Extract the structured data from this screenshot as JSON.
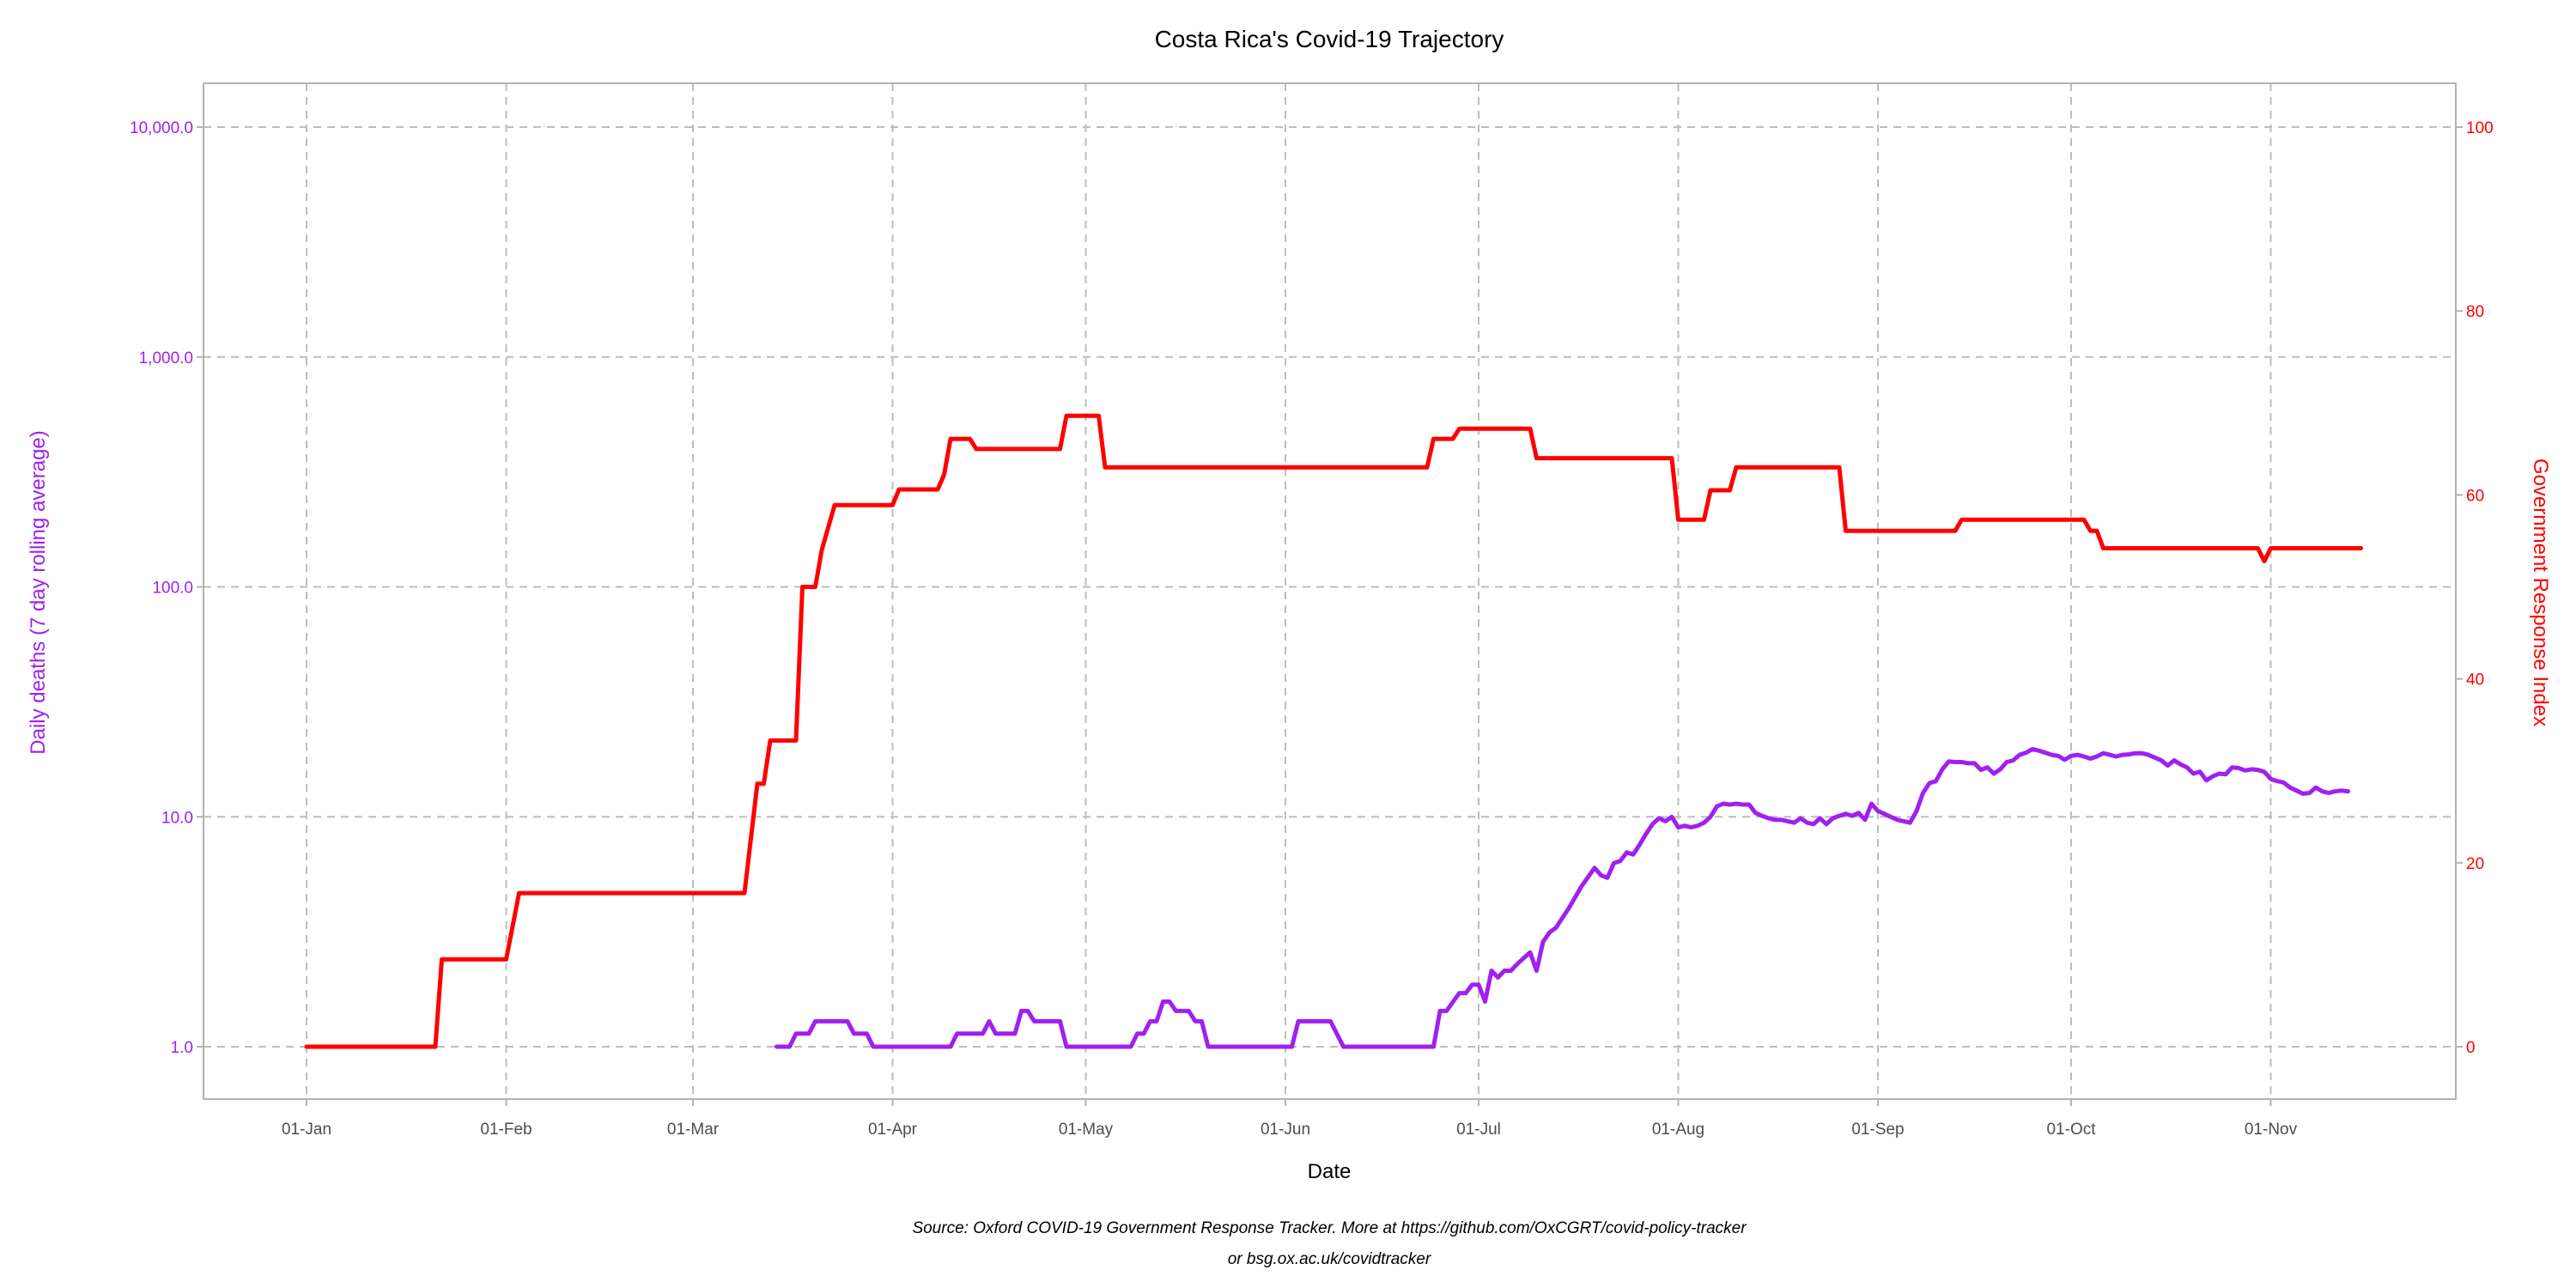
{
  "chart_data": {
    "type": "line",
    "title": "Costa Rica's Covid-19 Trajectory",
    "xlabel": "Date",
    "ylabel_left": "Daily deaths (7 day rolling average)",
    "ylabel_right": "Government Response Index",
    "caption_line1": "Source: Oxford COVID-19 Government Response Tracker. More at https://github.com/OxCGRT/covid-policy-tracker",
    "caption_line2": "or bsg.ox.ac.uk/covidtracker",
    "x_tick_labels": [
      "01-Jan",
      "01-Feb",
      "01-Mar",
      "01-Apr",
      "01-May",
      "01-Jun",
      "01-Jul",
      "01-Aug",
      "01-Sep",
      "01-Oct",
      "01-Nov"
    ],
    "y_left_scale": "log10",
    "y_left_ticks": [
      "1.0",
      "10.0",
      "100.0",
      "1,000.0",
      "10,000.0"
    ],
    "y_right_ticks": [
      "0",
      "20",
      "40",
      "60",
      "80",
      "100"
    ],
    "y_right_range": [
      0,
      100
    ],
    "grid": "dashed",
    "colors": {
      "deaths": "#a020f0",
      "response_index": "#ff0000",
      "axis_tick": "#4d4d4d"
    },
    "series": [
      {
        "name": "Government Response Index",
        "axis": "right",
        "points": [
          [
            "01-Jan",
            0
          ],
          [
            "21-Jan",
            0
          ],
          [
            "22-Jan",
            9.5
          ],
          [
            "01-Feb",
            9.5
          ],
          [
            "03-Feb",
            16.7
          ],
          [
            "09-Mar",
            16.7
          ],
          [
            "11-Mar",
            28.6
          ],
          [
            "12-Mar",
            28.6
          ],
          [
            "13-Mar",
            33.3
          ],
          [
            "17-Mar",
            33.3
          ],
          [
            "18-Mar",
            50
          ],
          [
            "20-Mar",
            50
          ],
          [
            "21-Mar",
            54
          ],
          [
            "23-Mar",
            58.9
          ],
          [
            "01-Apr",
            58.9
          ],
          [
            "02-Apr",
            60.6
          ],
          [
            "08-Apr",
            60.6
          ],
          [
            "09-Apr",
            62.2
          ],
          [
            "10-Apr",
            66.1
          ],
          [
            "13-Apr",
            66.1
          ],
          [
            "14-Apr",
            65
          ],
          [
            "27-Apr",
            65
          ],
          [
            "28-Apr",
            68.6
          ],
          [
            "03-May",
            68.6
          ],
          [
            "04-May",
            63
          ],
          [
            "23-Jun",
            63
          ],
          [
            "24-Jun",
            66.1
          ],
          [
            "27-Jun",
            66.1
          ],
          [
            "28-Jun",
            67.2
          ],
          [
            "09-Jul",
            67.2
          ],
          [
            "10-Jul",
            64
          ],
          [
            "31-Jul",
            64
          ],
          [
            "01-Aug",
            57.3
          ],
          [
            "05-Aug",
            57.3
          ],
          [
            "06-Aug",
            60.5
          ],
          [
            "09-Aug",
            60.5
          ],
          [
            "10-Aug",
            63
          ],
          [
            "26-Aug",
            63
          ],
          [
            "27-Aug",
            56.1
          ],
          [
            "13-Sep",
            56.1
          ],
          [
            "14-Sep",
            57.3
          ],
          [
            "03-Oct",
            57.3
          ],
          [
            "04-Oct",
            56.1
          ],
          [
            "05-Oct",
            56.1
          ],
          [
            "06-Oct",
            54.2
          ],
          [
            "30-Oct",
            54.2
          ],
          [
            "31-Oct",
            52.8
          ],
          [
            "01-Nov",
            54.2
          ],
          [
            "15-Nov",
            54.2
          ]
        ]
      },
      {
        "name": "Daily deaths (7 day rolling average)",
        "axis": "left",
        "points": [
          [
            "14-Mar",
            1.0
          ],
          [
            "16-Mar",
            1.0
          ],
          [
            "17-Mar",
            1.14
          ],
          [
            "19-Mar",
            1.14
          ],
          [
            "20-Mar",
            1.29
          ],
          [
            "23-Mar",
            1.29
          ],
          [
            "25-Mar",
            1.29
          ],
          [
            "26-Mar",
            1.14
          ],
          [
            "28-Mar",
            1.14
          ],
          [
            "29-Mar",
            1.0
          ],
          [
            "05-Apr",
            1.0
          ],
          [
            "10-Apr",
            1.0
          ],
          [
            "11-Apr",
            1.14
          ],
          [
            "15-Apr",
            1.14
          ],
          [
            "16-Apr",
            1.29
          ],
          [
            "17-Apr",
            1.14
          ],
          [
            "19-Apr",
            1.14
          ],
          [
            "20-Apr",
            1.14
          ],
          [
            "21-Apr",
            1.43
          ],
          [
            "22-Apr",
            1.43
          ],
          [
            "23-Apr",
            1.29
          ],
          [
            "27-Apr",
            1.29
          ],
          [
            "28-Apr",
            1.0
          ],
          [
            "08-May",
            1.0
          ],
          [
            "09-May",
            1.14
          ],
          [
            "10-May",
            1.14
          ],
          [
            "11-May",
            1.29
          ],
          [
            "12-May",
            1.29
          ],
          [
            "13-May",
            1.57
          ],
          [
            "14-May",
            1.57
          ],
          [
            "15-May",
            1.43
          ],
          [
            "17-May",
            1.43
          ],
          [
            "18-May",
            1.29
          ],
          [
            "19-May",
            1.29
          ],
          [
            "20-May",
            1.0
          ],
          [
            "31-May",
            1.0
          ],
          [
            "02-Jun",
            1.0
          ],
          [
            "03-Jun",
            1.29
          ],
          [
            "08-Jun",
            1.29
          ],
          [
            "10-Jun",
            1.0
          ],
          [
            "24-Jun",
            1.0
          ],
          [
            "25-Jun",
            1.43
          ],
          [
            "26-Jun",
            1.43
          ],
          [
            "28-Jun",
            1.71
          ],
          [
            "29-Jun",
            1.71
          ],
          [
            "30-Jun",
            1.86
          ],
          [
            "01-Jul",
            1.86
          ],
          [
            "02-Jul",
            1.57
          ],
          [
            "03-Jul",
            2.14
          ],
          [
            "04-Jul",
            2.0
          ],
          [
            "05-Jul",
            2.14
          ],
          [
            "06-Jul",
            2.14
          ],
          [
            "07-Jul",
            2.29
          ],
          [
            "08-Jul",
            2.43
          ],
          [
            "09-Jul",
            2.57
          ],
          [
            "10-Jul",
            2.14
          ],
          [
            "11-Jul",
            2.86
          ],
          [
            "12-Jul",
            3.14
          ],
          [
            "13-Jul",
            3.29
          ],
          [
            "15-Jul",
            4.0
          ],
          [
            "17-Jul",
            5.0
          ],
          [
            "19-Jul",
            6.0
          ],
          [
            "20-Jul",
            5.57
          ],
          [
            "21-Jul",
            5.43
          ],
          [
            "22-Jul",
            6.29
          ],
          [
            "23-Jul",
            6.43
          ],
          [
            "24-Jul",
            7.0
          ],
          [
            "25-Jul",
            6.86
          ],
          [
            "26-Jul",
            7.57
          ],
          [
            "27-Jul",
            8.43
          ],
          [
            "28-Jul",
            9.29
          ],
          [
            "29-Jul",
            9.86
          ],
          [
            "30-Jul",
            9.57
          ],
          [
            "31-Jul",
            10.0
          ],
          [
            "01-Aug",
            9.0
          ],
          [
            "02-Aug",
            9.14
          ],
          [
            "03-Aug",
            9.0
          ],
          [
            "04-Aug",
            9.14
          ],
          [
            "05-Aug",
            9.43
          ],
          [
            "06-Aug",
            10.0
          ],
          [
            "07-Aug",
            11.1
          ],
          [
            "08-Aug",
            11.4
          ],
          [
            "09-Aug",
            11.3
          ],
          [
            "10-Aug",
            11.4
          ],
          [
            "11-Aug",
            11.3
          ],
          [
            "12-Aug",
            11.3
          ],
          [
            "13-Aug",
            10.4
          ],
          [
            "14-Aug",
            10.1
          ],
          [
            "15-Aug",
            9.86
          ],
          [
            "16-Aug",
            9.71
          ],
          [
            "17-Aug",
            9.71
          ],
          [
            "18-Aug",
            9.57
          ],
          [
            "19-Aug",
            9.43
          ],
          [
            "20-Aug",
            9.86
          ],
          [
            "21-Aug",
            9.43
          ],
          [
            "22-Aug",
            9.29
          ],
          [
            "23-Aug",
            9.86
          ],
          [
            "24-Aug",
            9.29
          ],
          [
            "25-Aug",
            9.86
          ],
          [
            "26-Aug",
            10.1
          ],
          [
            "27-Aug",
            10.3
          ],
          [
            "28-Aug",
            10.1
          ],
          [
            "29-Aug",
            10.4
          ],
          [
            "30-Aug",
            9.71
          ],
          [
            "31-Aug",
            11.4
          ],
          [
            "01-Sep",
            10.6
          ],
          [
            "02-Sep",
            10.3
          ],
          [
            "03-Sep",
            10.0
          ],
          [
            "04-Sep",
            9.71
          ],
          [
            "05-Sep",
            9.57
          ],
          [
            "06-Sep",
            9.43
          ],
          [
            "07-Sep",
            10.6
          ],
          [
            "08-Sep",
            12.7
          ],
          [
            "09-Sep",
            14.0
          ],
          [
            "10-Sep",
            14.3
          ],
          [
            "11-Sep",
            16.1
          ],
          [
            "12-Sep",
            17.4
          ],
          [
            "13-Sep",
            17.3
          ],
          [
            "14-Sep",
            17.3
          ],
          [
            "15-Sep",
            17.1
          ],
          [
            "16-Sep",
            17.1
          ],
          [
            "17-Sep",
            16.0
          ],
          [
            "18-Sep",
            16.4
          ],
          [
            "19-Sep",
            15.4
          ],
          [
            "20-Sep",
            16.1
          ],
          [
            "21-Sep",
            17.3
          ],
          [
            "22-Sep",
            17.6
          ],
          [
            "23-Sep",
            18.6
          ],
          [
            "24-Sep",
            19.0
          ],
          [
            "25-Sep",
            19.7
          ],
          [
            "26-Sep",
            19.4
          ],
          [
            "27-Sep",
            19.0
          ],
          [
            "28-Sep",
            18.6
          ],
          [
            "29-Sep",
            18.4
          ],
          [
            "30-Sep",
            17.7
          ],
          [
            "01-Oct",
            18.4
          ],
          [
            "02-Oct",
            18.6
          ],
          [
            "03-Oct",
            18.3
          ],
          [
            "04-Oct",
            17.9
          ],
          [
            "05-Oct",
            18.3
          ],
          [
            "06-Oct",
            18.9
          ],
          [
            "07-Oct",
            18.6
          ],
          [
            "08-Oct",
            18.3
          ],
          [
            "09-Oct",
            18.6
          ],
          [
            "10-Oct",
            18.7
          ],
          [
            "11-Oct",
            18.9
          ],
          [
            "12-Oct",
            18.9
          ],
          [
            "13-Oct",
            18.6
          ],
          [
            "14-Oct",
            18.1
          ],
          [
            "15-Oct",
            17.6
          ],
          [
            "16-Oct",
            16.7
          ],
          [
            "17-Oct",
            17.6
          ],
          [
            "18-Oct",
            16.9
          ],
          [
            "19-Oct",
            16.4
          ],
          [
            "20-Oct",
            15.4
          ],
          [
            "21-Oct",
            15.7
          ],
          [
            "22-Oct",
            14.4
          ],
          [
            "23-Oct",
            15.0
          ],
          [
            "24-Oct",
            15.4
          ],
          [
            "25-Oct",
            15.3
          ],
          [
            "26-Oct",
            16.4
          ],
          [
            "27-Oct",
            16.3
          ],
          [
            "28-Oct",
            15.9
          ],
          [
            "29-Oct",
            16.1
          ],
          [
            "30-Oct",
            16.0
          ],
          [
            "31-Oct",
            15.7
          ],
          [
            "01-Nov",
            14.6
          ],
          [
            "02-Nov",
            14.3
          ],
          [
            "03-Nov",
            14.1
          ],
          [
            "04-Nov",
            13.4
          ],
          [
            "05-Nov",
            13.0
          ],
          [
            "06-Nov",
            12.6
          ],
          [
            "07-Nov",
            12.7
          ],
          [
            "08-Nov",
            13.4
          ],
          [
            "09-Nov",
            12.9
          ],
          [
            "10-Nov",
            12.7
          ],
          [
            "11-Nov",
            12.9
          ],
          [
            "12-Nov",
            13.0
          ],
          [
            "13-Nov",
            12.9
          ]
        ]
      }
    ]
  }
}
